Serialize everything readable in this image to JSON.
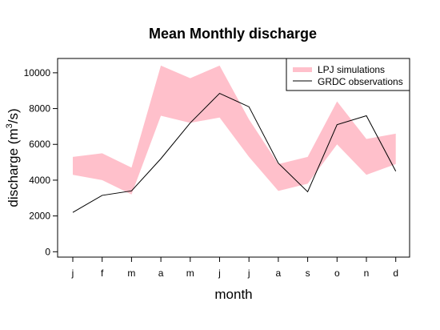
{
  "chart_data": {
    "type": "area",
    "title": "Mean Monthly discharge",
    "xlabel": "month",
    "ylabel": {
      "main": "discharge (m",
      "sup": "3",
      "tail": "/s)"
    },
    "categories": [
      "j",
      "f",
      "m",
      "a",
      "m",
      "j",
      "j",
      "a",
      "s",
      "o",
      "n",
      "d"
    ],
    "ylim": [
      -300,
      10800
    ],
    "yticks": [
      0,
      2000,
      4000,
      6000,
      8000,
      10000
    ],
    "grid": false,
    "legend_position": "top-right",
    "series": [
      {
        "name": "LPJ simulations",
        "kind": "band",
        "color": "#ffc0cb",
        "upper": [
          5300,
          5500,
          4700,
          10400,
          9700,
          10400,
          7400,
          4900,
          5300,
          8400,
          6300,
          6600
        ],
        "lower": [
          4300,
          4000,
          3200,
          7600,
          7200,
          7500,
          5300,
          3400,
          3800,
          6000,
          4300,
          4900
        ]
      },
      {
        "name": "GRDC observations",
        "kind": "line",
        "color": "#000000",
        "values": [
          2200,
          3150,
          3400,
          5200,
          7200,
          8850,
          8100,
          4950,
          3350,
          7100,
          7600,
          4500
        ]
      }
    ]
  }
}
